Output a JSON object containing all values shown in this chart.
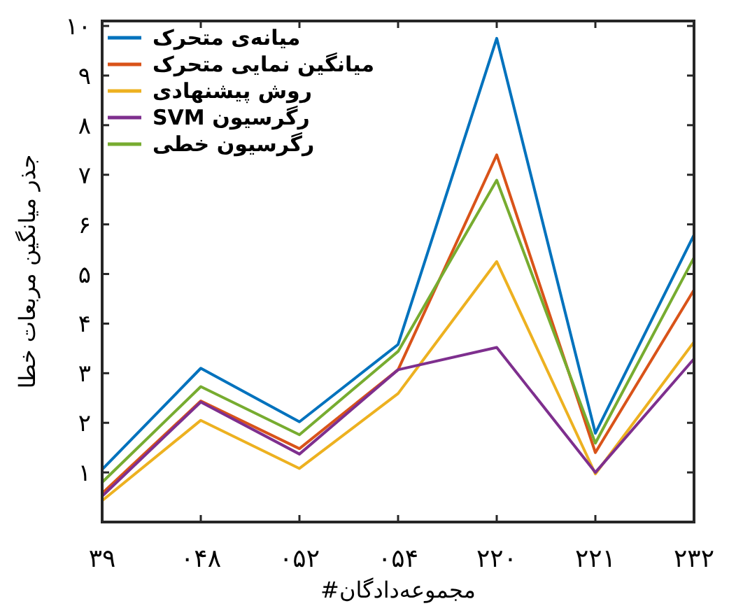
{
  "chart_data": {
    "type": "line",
    "xlabel": "مجموعه‌دادگان#",
    "ylabel": "جذر میانگین مربعات خطا",
    "categories": [
      "۳۹",
      "۰۴۸",
      "۰۵۲",
      "۰۵۴",
      "۲۲۰",
      "۲۲۱",
      "۲۳۲"
    ],
    "ylim": [
      0,
      10.1
    ],
    "yticks": [
      {
        "value": 1,
        "label": "۱"
      },
      {
        "value": 2,
        "label": "۲"
      },
      {
        "value": 3,
        "label": "۳"
      },
      {
        "value": 4,
        "label": "۴"
      },
      {
        "value": 5,
        "label": "۵"
      },
      {
        "value": 6,
        "label": "۶"
      },
      {
        "value": 7,
        "label": "۷"
      },
      {
        "value": 8,
        "label": "۸"
      },
      {
        "value": 9,
        "label": "۹"
      },
      {
        "value": 10,
        "label": "۱۰"
      }
    ],
    "grid": false,
    "legend": "top left",
    "marker": "none",
    "line_style": "solid",
    "series": [
      {
        "name": "میانه‌ی متحرک",
        "color": "#0072bd",
        "values": [
          1.06,
          3.1,
          2.02,
          3.58,
          9.75,
          1.79,
          5.79
        ]
      },
      {
        "name": "میانگین نمایی متحرک",
        "color": "#d95319",
        "values": [
          0.58,
          2.44,
          1.48,
          3.07,
          7.4,
          1.4,
          4.68
        ]
      },
      {
        "name": "روش پیشنهادی",
        "color": "#edb120",
        "values": [
          0.43,
          2.05,
          1.08,
          2.59,
          5.25,
          0.97,
          3.63
        ]
      },
      {
        "name": "رگرسیون SVM",
        "color": "#7e2f8e",
        "values": [
          0.52,
          2.42,
          1.37,
          3.07,
          3.52,
          1.0,
          3.29
        ]
      },
      {
        "name": "رگرسیون خطی",
        "color": "#77ac30",
        "values": [
          0.8,
          2.73,
          1.76,
          3.44,
          6.89,
          1.59,
          5.33
        ]
      }
    ]
  }
}
